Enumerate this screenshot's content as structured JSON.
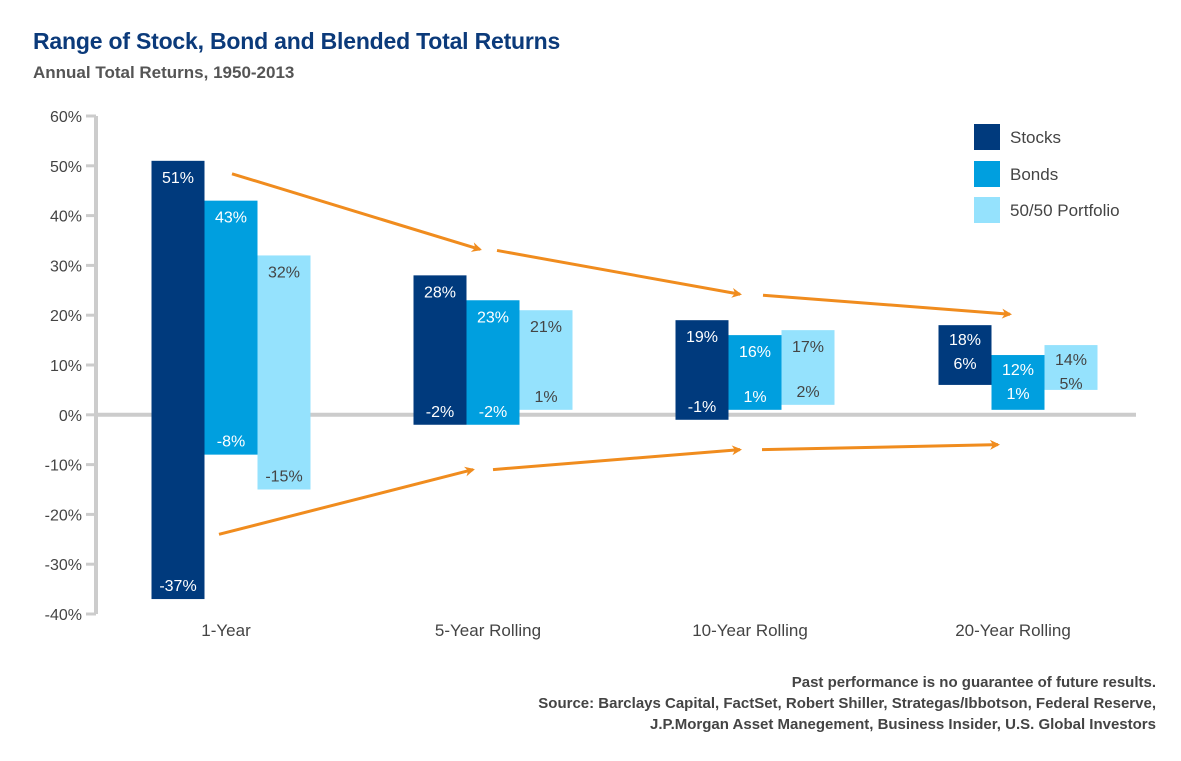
{
  "chart_data": {
    "type": "bar",
    "subtype": "floating-range",
    "title": "Range of Stock, Bond and Blended Total Returns",
    "subtitle": "Annual Total Returns, 1950-2013",
    "xlabel": "",
    "ylabel": "",
    "ylim": [
      -40,
      60
    ],
    "yticks": [
      60,
      50,
      40,
      30,
      20,
      10,
      0,
      -10,
      -20,
      -30,
      -40
    ],
    "ytick_labels": [
      "60%",
      "50%",
      "40%",
      "30%",
      "20%",
      "10%",
      "0%",
      "-10%",
      "-20%",
      "-30%",
      "-40%"
    ],
    "categories": [
      "1-Year",
      "5-Year Rolling",
      "10-Year Rolling",
      "20-Year Rolling"
    ],
    "series": [
      {
        "name": "Stocks",
        "color": "#003a7d",
        "label_color": "#ffffff",
        "high": [
          51,
          28,
          19,
          18
        ],
        "low": [
          -37,
          -2,
          -1,
          6
        ],
        "high_labels": [
          "51%",
          "28%",
          "19%",
          "18%"
        ],
        "low_labels": [
          "-37%",
          "-2%",
          "-1%",
          "6%"
        ]
      },
      {
        "name": "Bonds",
        "color": "#009fdf",
        "label_color": "#ffffff",
        "high": [
          43,
          23,
          16,
          12
        ],
        "low": [
          -8,
          -2,
          1,
          1
        ],
        "high_labels": [
          "43%",
          "23%",
          "16%",
          "12%"
        ],
        "low_labels": [
          "-8%",
          "-2%",
          "1%",
          "1%"
        ]
      },
      {
        "name": "50/50 Portfolio",
        "color": "#95e2fd",
        "label_color": "#444444",
        "high": [
          32,
          21,
          17,
          14
        ],
        "low": [
          -15,
          1,
          2,
          5
        ],
        "high_labels": [
          "32%",
          "21%",
          "17%",
          "14%"
        ],
        "low_labels": [
          "-15%",
          "1%",
          "2%",
          "5%"
        ]
      }
    ],
    "annotations": {
      "arrows": "orange arrows converging toward narrowing range over longer holding periods",
      "arrow_color": "#f08c1e",
      "upper_trend": [
        49,
        33,
        24,
        20
      ],
      "lower_trend": [
        -24,
        -11,
        -7,
        -6
      ]
    },
    "legend": {
      "position": "top-right",
      "entries": [
        "Stocks",
        "Bonds",
        "50/50 Portfolio"
      ]
    },
    "grid": false,
    "zero_line": true
  },
  "footer": {
    "note": "Past performance is no guarantee of future results.",
    "source_line1": "Source: Barclays Capital, FactSet, Robert Shiller, Strategas/Ibbotson, Federal Reserve,",
    "source_line2": "J.P.Morgan Asset Manegement, Business Insider, U.S. Global Investors"
  }
}
